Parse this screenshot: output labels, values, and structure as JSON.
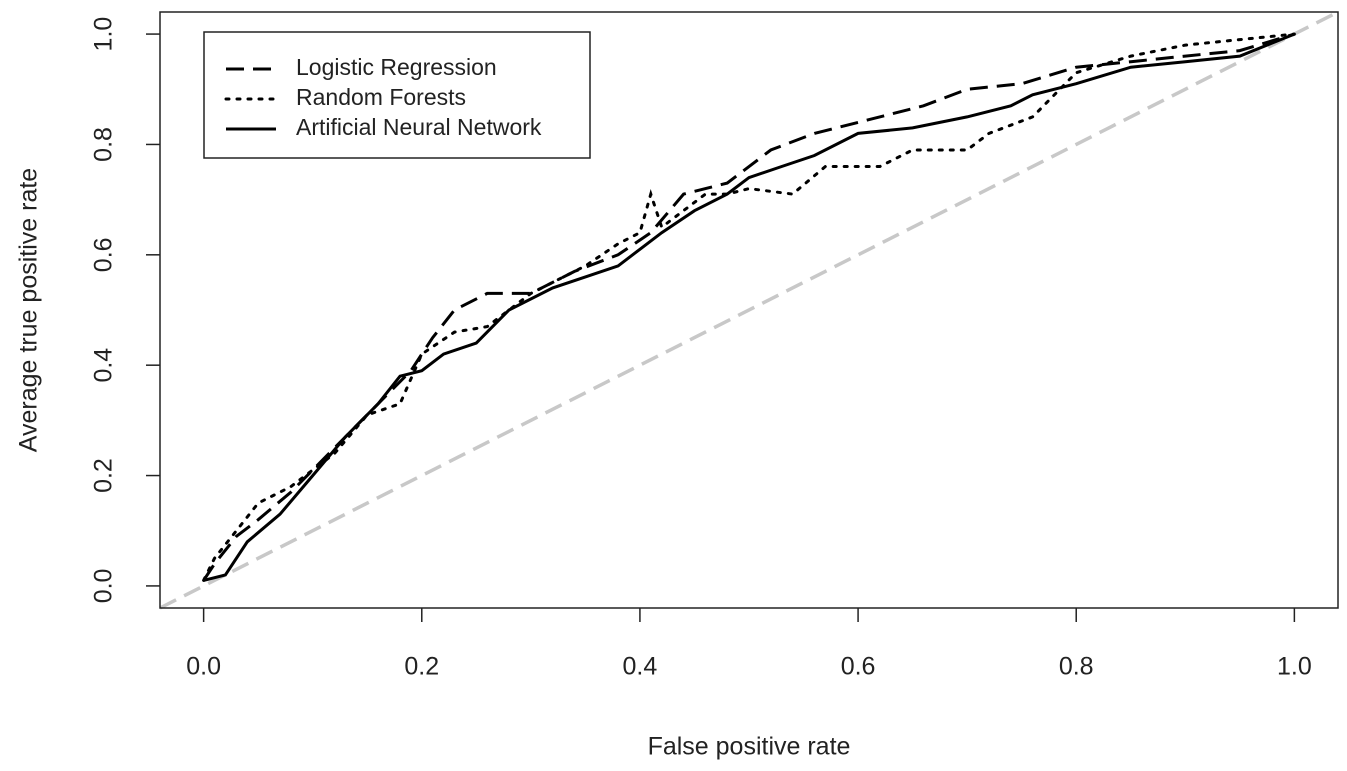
{
  "chart_data": {
    "type": "line",
    "x_label": "False positive rate",
    "y_label": "Average true positive rate",
    "xlim": [
      -0.04,
      1.04
    ],
    "ylim": [
      -0.04,
      1.04
    ],
    "xticks": [
      {
        "value": 0,
        "label": "0.0"
      },
      0.2,
      0.4,
      0.6,
      0.8,
      {
        "value": 1,
        "label": "1.0"
      }
    ],
    "yticks": [
      {
        "value": 0,
        "label": "0.0"
      },
      0.2,
      0.4,
      0.6,
      0.8,
      {
        "value": 1,
        "label": "1.0"
      }
    ],
    "legend": "top-left",
    "reference_line": {
      "color": "#c8c8c8",
      "dash": "dashed"
    },
    "series": [
      {
        "name": "Logistic Regression",
        "color": "#000000",
        "dash": "dashed",
        "x": [
          0,
          0.01,
          0.03,
          0.05,
          0.08,
          0.1,
          0.13,
          0.16,
          0.19,
          0.21,
          0.23,
          0.26,
          0.3,
          0.34,
          0.38,
          0.41,
          0.44,
          0.48,
          0.52,
          0.56,
          0.6,
          0.66,
          0.7,
          0.75,
          0.8,
          0.85,
          0.9,
          0.95,
          1
        ],
        "values": [
          0.01,
          0.04,
          0.09,
          0.12,
          0.17,
          0.21,
          0.27,
          0.33,
          0.39,
          0.45,
          0.5,
          0.53,
          0.53,
          0.57,
          0.6,
          0.64,
          0.71,
          0.73,
          0.79,
          0.82,
          0.84,
          0.87,
          0.9,
          0.91,
          0.94,
          0.95,
          0.96,
          0.97,
          1
        ]
      },
      {
        "name": "Random Forests",
        "color": "#000000",
        "dash": "dotted",
        "x": [
          0,
          0.01,
          0.03,
          0.05,
          0.08,
          0.1,
          0.12,
          0.15,
          0.18,
          0.2,
          0.23,
          0.26,
          0.3,
          0.35,
          0.38,
          0.4,
          0.41,
          0.42,
          0.46,
          0.48,
          0.5,
          0.54,
          0.57,
          0.62,
          0.65,
          0.7,
          0.72,
          0.76,
          0.8,
          0.85,
          0.9,
          0.95,
          1
        ],
        "values": [
          0.01,
          0.05,
          0.1,
          0.15,
          0.18,
          0.21,
          0.24,
          0.31,
          0.33,
          0.42,
          0.46,
          0.47,
          0.53,
          0.58,
          0.62,
          0.64,
          0.71,
          0.65,
          0.71,
          0.71,
          0.72,
          0.71,
          0.76,
          0.76,
          0.79,
          0.79,
          0.82,
          0.85,
          0.93,
          0.96,
          0.98,
          0.99,
          1
        ]
      },
      {
        "name": "Artificial Neural Network",
        "color": "#000000",
        "dash": "solid",
        "x": [
          0,
          0.02,
          0.04,
          0.07,
          0.1,
          0.13,
          0.16,
          0.18,
          0.2,
          0.22,
          0.25,
          0.28,
          0.32,
          0.35,
          0.38,
          0.4,
          0.42,
          0.45,
          0.48,
          0.5,
          0.53,
          0.56,
          0.6,
          0.65,
          0.7,
          0.74,
          0.76,
          0.8,
          0.85,
          0.9,
          0.95,
          1
        ],
        "values": [
          0.01,
          0.02,
          0.08,
          0.13,
          0.2,
          0.27,
          0.33,
          0.38,
          0.39,
          0.42,
          0.44,
          0.5,
          0.54,
          0.56,
          0.58,
          0.61,
          0.64,
          0.68,
          0.71,
          0.74,
          0.76,
          0.78,
          0.82,
          0.83,
          0.85,
          0.87,
          0.89,
          0.91,
          0.94,
          0.95,
          0.96,
          1
        ]
      }
    ]
  }
}
